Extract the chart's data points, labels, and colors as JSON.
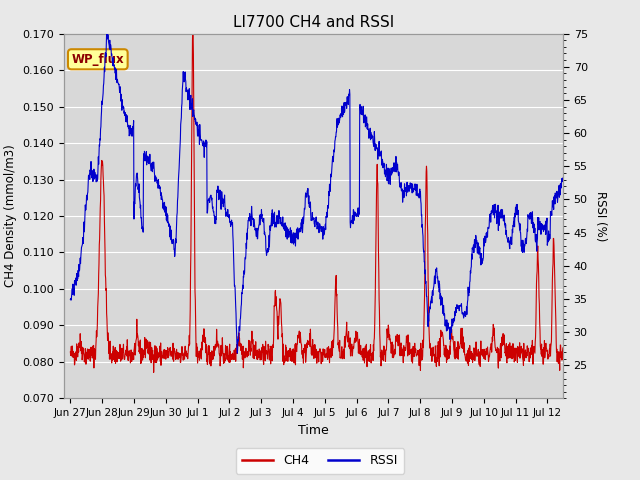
{
  "title": "LI7700 CH4 and RSSI",
  "xlabel": "Time",
  "ylabel_left": "CH4 Density (mmol/m3)",
  "ylabel_right": "RSSI (%)",
  "ylim_left": [
    0.07,
    0.17
  ],
  "ylim_right": [
    20,
    75
  ],
  "yticks_left": [
    0.07,
    0.08,
    0.09,
    0.1,
    0.11,
    0.12,
    0.13,
    0.14,
    0.15,
    0.16,
    0.17
  ],
  "yticks_right": [
    25,
    30,
    35,
    40,
    45,
    50,
    55,
    60,
    65,
    70,
    75
  ],
  "ch4_color": "#cc0000",
  "rssi_color": "#0000cc",
  "fig_bg": "#e8e8e8",
  "plot_bg": "#d8d8d8",
  "annotation_text": "WP_flux",
  "annotation_bg": "#ffff99",
  "annotation_border": "#cc8800",
  "grid_color": "#ffffff",
  "legend_ch4": "CH4",
  "legend_rssi": "RSSI",
  "tick_labels": [
    "Jun 27",
    "Jun 28",
    "Jun 29",
    "Jun 30",
    "Jul 1",
    "Jul 2",
    "Jul 3",
    "Jul 4",
    "Jul 5",
    "Jul 6",
    "Jul 7",
    "Jul 8",
    "Jul 9",
    "Jul 10",
    "Jul 11",
    "Jul 12"
  ]
}
